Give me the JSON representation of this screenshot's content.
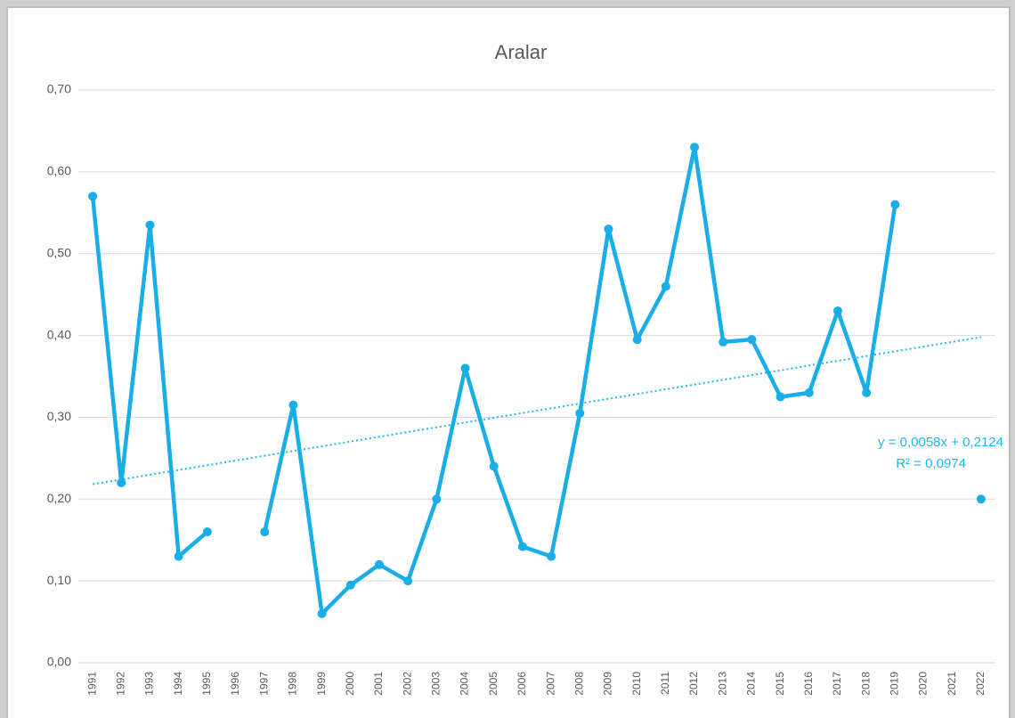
{
  "chart_data": {
    "type": "line",
    "title": "Aralar",
    "categories": [
      "1991",
      "1992",
      "1993",
      "1994",
      "1995",
      "1996",
      "1997",
      "1998",
      "1999",
      "2000",
      "2001",
      "2002",
      "2003",
      "2004",
      "2005",
      "2006",
      "2007",
      "2008",
      "2009",
      "2010",
      "2011",
      "2012",
      "2013",
      "2014",
      "2015",
      "2016",
      "2017",
      "2018",
      "2019",
      "2020",
      "2021",
      "2022"
    ],
    "series": [
      {
        "name": "Aralar",
        "color": "#1aaee8",
        "values": [
          0.57,
          0.22,
          0.535,
          0.13,
          0.16,
          null,
          0.16,
          0.315,
          0.06,
          0.095,
          0.12,
          0.1,
          0.2,
          0.36,
          0.24,
          0.142,
          0.13,
          0.305,
          0.53,
          0.395,
          0.46,
          0.63,
          0.392,
          0.395,
          0.325,
          0.33,
          0.43,
          0.33,
          0.56,
          null,
          null,
          0.2
        ]
      }
    ],
    "ylim": [
      0,
      0.7
    ],
    "yticks": [
      {
        "value": 0,
        "label": "0,00"
      },
      {
        "value": 0.1,
        "label": "0,10"
      },
      {
        "value": 0.2,
        "label": "0,20"
      },
      {
        "value": 0.3,
        "label": "0,30"
      },
      {
        "value": 0.4,
        "label": "0,40"
      },
      {
        "value": 0.5,
        "label": "0,50"
      },
      {
        "value": 0.6,
        "label": "0,60"
      },
      {
        "value": 0.7,
        "label": "0,70"
      }
    ],
    "grid": true,
    "trendline": {
      "slope": 0.0058,
      "intercept": 0.2124,
      "color": "#1fb6ec",
      "equation": "y = 0,0058x + 0,2124",
      "r2": "R² = 0,0974"
    }
  }
}
